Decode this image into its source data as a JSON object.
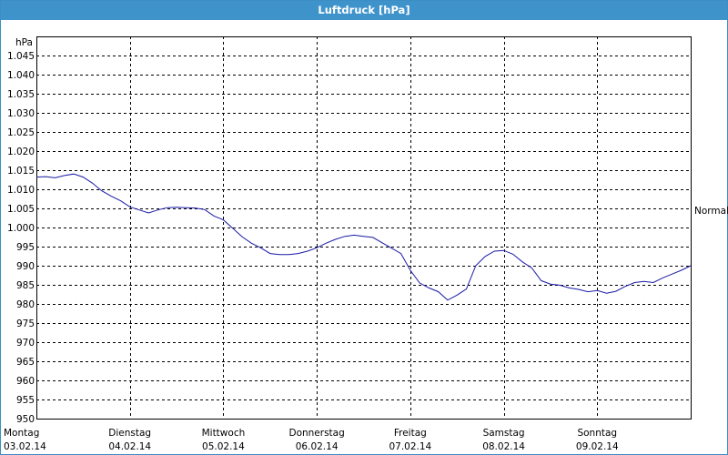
{
  "window": {
    "title": "Luftdruck [hPa]",
    "title_bg": "#3f93cb",
    "line_color": "#1a1aa6"
  },
  "chart_data": {
    "type": "line",
    "title": "Luftdruck [hPa]",
    "ylabel": "hPa",
    "xlabel": "",
    "ylim": [
      950,
      1050
    ],
    "yticks": [
      950,
      955,
      960,
      965,
      970,
      975,
      980,
      985,
      990,
      995,
      1000,
      1005,
      1010,
      1015,
      1020,
      1025,
      1030,
      1035,
      1040,
      1045
    ],
    "ytick_labels": [
      "950",
      "955",
      "960",
      "965",
      "970",
      "975",
      "980",
      "985",
      "990",
      "995",
      "1.000",
      "1.005",
      "1.010",
      "1.015",
      "1.020",
      "1.025",
      "1.030",
      "1.035",
      "1.040",
      "1.045"
    ],
    "xlim": [
      0,
      7
    ],
    "xticks": [
      {
        "day": "Montag",
        "date": "03.02.14"
      },
      {
        "day": "Dienstag",
        "date": "04.02.14"
      },
      {
        "day": "Mittwoch",
        "date": "05.02.14"
      },
      {
        "day": "Donnerstag",
        "date": "06.02.14"
      },
      {
        "day": "Freitag",
        "date": "07.02.14"
      },
      {
        "day": "Samstag",
        "date": "08.02.14"
      },
      {
        "day": "Sonntag",
        "date": "09.02.14"
      }
    ],
    "reference_line": {
      "label": "Normal",
      "value": 1004.5,
      "drawn": false
    },
    "grid": true,
    "series": [
      {
        "x": [
          0,
          0.1,
          0.2,
          0.3,
          0.4,
          0.5,
          0.6,
          0.7,
          0.8,
          0.9,
          1.0,
          1.1,
          1.2,
          1.3,
          1.4,
          1.5,
          1.6,
          1.7,
          1.8,
          1.9,
          2.0,
          2.1,
          2.2,
          2.3,
          2.4,
          2.5,
          2.6,
          2.7,
          2.8,
          2.9,
          3.0,
          3.1,
          3.2,
          3.3,
          3.4,
          3.5,
          3.6,
          3.7,
          3.8,
          3.9,
          4.0,
          4.1,
          4.2,
          4.3,
          4.4,
          4.5,
          4.6,
          4.7,
          4.8,
          4.9,
          5.0,
          5.1,
          5.2,
          5.3,
          5.4,
          5.5,
          5.6,
          5.7,
          5.8,
          5.9,
          6.0,
          6.1,
          6.2,
          6.3,
          6.4,
          6.5,
          6.6,
          6.7,
          6.8,
          6.9,
          7.0
        ],
        "values": [
          1013.2,
          1013.3,
          1013.0,
          1013.6,
          1014.0,
          1013.2,
          1011.6,
          1009.6,
          1008.2,
          1007.0,
          1005.4,
          1004.6,
          1003.8,
          1004.6,
          1005.2,
          1005.3,
          1005.2,
          1005.1,
          1004.7,
          1003.0,
          1002.0,
          999.8,
          997.6,
          995.9,
          994.7,
          993.2,
          992.9,
          992.9,
          993.2,
          993.8,
          994.7,
          995.9,
          996.9,
          997.7,
          998.0,
          997.7,
          997.4,
          996.0,
          994.6,
          993.2,
          988.8,
          985.5,
          984.2,
          983.2,
          981.0,
          982.3,
          983.9,
          990.0,
          992.4,
          993.8,
          994.0,
          993.0,
          991.0,
          989.4,
          986.1,
          985.2,
          984.9,
          984.2,
          983.8,
          983.2,
          983.5,
          982.8,
          983.3,
          984.6,
          985.6,
          985.9,
          985.6,
          986.8,
          987.8,
          988.8,
          990.0
        ]
      }
    ]
  }
}
